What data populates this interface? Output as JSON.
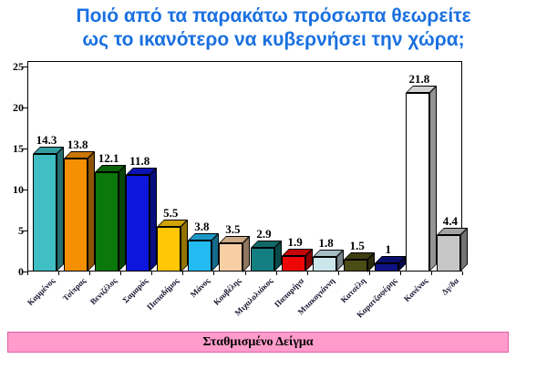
{
  "title": {
    "line1": "Ποιό από τα παρακάτω πρόσωπα θεωρείτε",
    "line2": "ως το ικανότερο να κυβερνήσει την χώρα;"
  },
  "footer": {
    "label": "Σταθμισμένο Δείγμα"
  },
  "colors": {
    "title_text": "#1a70e0",
    "banner_bg": "#ff9ccb",
    "banner_border": "#e060a8",
    "axis": "#000000"
  },
  "chart_data": {
    "type": "bar",
    "title": "Ποιό από τα παρακάτω πρόσωπα θεωρείτε ως το ικανότερο να κυβερνήσει την χώρα;",
    "subtitle": "Σταθμισμένο Δείγμα",
    "categories": [
      "Καμμένος",
      "Τσίπρας",
      "Βενιζέλος",
      "Σαμαράς",
      "Παπαδήμος",
      "Μάνος",
      "Κουβέλης",
      "Μιχαλολιάκος",
      "Παπαρήγα",
      "Μπακογιάννη",
      "Κατσέλη",
      "Καρατζαφέρης",
      "Κανένας",
      "Δγ/δα"
    ],
    "values": [
      14.3,
      13.8,
      12.1,
      11.8,
      5.5,
      3.8,
      3.5,
      2.9,
      1.9,
      1.8,
      1.5,
      1,
      21.8,
      4.4
    ],
    "value_labels": [
      "14.3",
      "13.8",
      "12.1",
      "11.8",
      "5.5",
      "3.8",
      "3.5",
      "2.9",
      "1.9",
      "1.8",
      "1.5",
      "1",
      "21.8",
      "4.4"
    ],
    "bar_colors": [
      "#3fbfc3",
      "#f59005",
      "#0a780a",
      "#0d17db",
      "#ffc707",
      "#23b9f2",
      "#f8cea4",
      "#137f80",
      "#ee0707",
      "#cbe6eb",
      "#4c4c17",
      "#0e1284",
      "#ffffff",
      "#c6c6c6"
    ],
    "xlabel": "",
    "ylabel": "",
    "ylim": [
      0,
      25
    ],
    "yticks": [
      0,
      5,
      10,
      15,
      20,
      25
    ],
    "grid": false,
    "legend": "none",
    "style": "3d-column"
  }
}
